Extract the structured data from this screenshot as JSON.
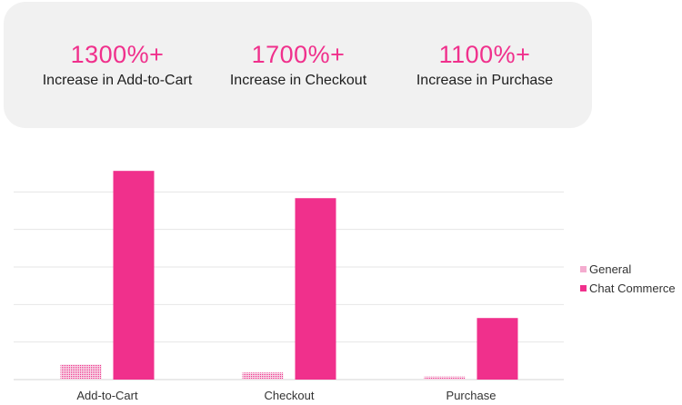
{
  "stats": [
    {
      "value": "1300%+",
      "label": "Increase in Add-to-Cart"
    },
    {
      "value": "1700%+",
      "label": "Increase in Checkout"
    },
    {
      "value": "1100%+",
      "label": "Increase in Purchase"
    }
  ],
  "colors": {
    "accent": "#f0308c",
    "general_series": "#f0308c",
    "chat_commerce_series": "#f0308c",
    "panel_background": "#f1f1f1",
    "gridline": "#e6e6e6"
  },
  "chart_data": {
    "type": "bar",
    "categories": [
      "Add-to-Cart",
      "Checkout",
      "Purchase"
    ],
    "series": [
      {
        "name": "General",
        "values": [
          6,
          2.8,
          1.2
        ],
        "pattern": "dotted"
      },
      {
        "name": "Chat Commerce",
        "values": [
          83.4,
          72.5,
          24.6
        ],
        "pattern": "solid"
      }
    ],
    "ylim": [
      0,
      90
    ],
    "grid": true,
    "legend_position": "right",
    "title": "",
    "xlabel": "",
    "ylabel": ""
  }
}
